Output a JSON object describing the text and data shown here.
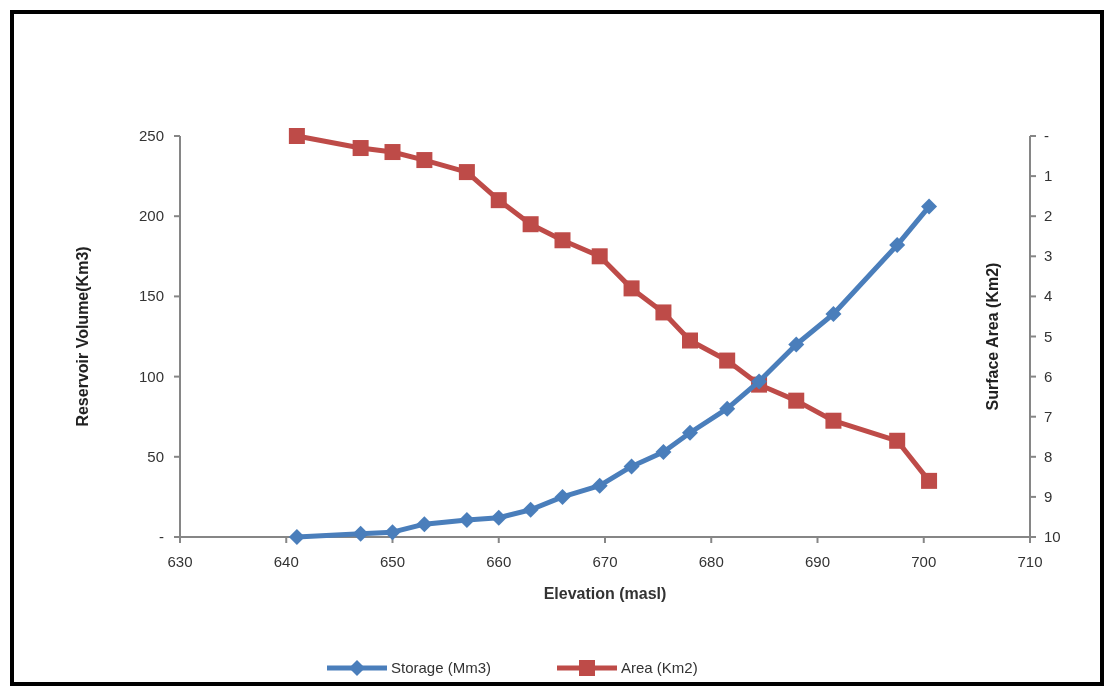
{
  "chart_data": {
    "type": "line",
    "xlabel": "Elevation (masl)",
    "ylabel": "Reservoir  Volume(Km3)",
    "y2label": "Surface Area (Km2)",
    "x": [
      641,
      647,
      650,
      653,
      657,
      660,
      663,
      666,
      669.5,
      672.5,
      675.5,
      678,
      681.5,
      684.5,
      688,
      691.5,
      697.5,
      700.5
    ],
    "series": [
      {
        "name": "Storage (Mm3)",
        "color": "#4a7ebb",
        "marker": "diamond",
        "values": [
          0,
          2,
          3,
          8,
          10.6,
          12,
          17,
          25,
          32,
          44,
          53,
          65,
          80,
          97,
          120,
          139,
          182,
          206
        ]
      },
      {
        "name": "Area (Km2)",
        "color": "#be4b48",
        "marker": "square",
        "axis": "y2",
        "values": [
          0,
          0.3,
          0.4,
          0.6,
          0.9,
          1.6,
          2.2,
          2.6,
          3.0,
          3.8,
          4.4,
          5.1,
          5.6,
          6.2,
          6.6,
          7.1,
          7.6,
          8.6
        ]
      }
    ],
    "xlim": [
      630,
      710
    ],
    "xticks": [
      630,
      640,
      650,
      660,
      670,
      680,
      690,
      700,
      710
    ],
    "ylim": [
      0,
      250
    ],
    "yticks": [
      {
        "value": 0,
        "label": "-"
      },
      50,
      100,
      150,
      200,
      250
    ],
    "y2lim": [
      10,
      0
    ],
    "y2ticks": [
      {
        "value": 0,
        "label": "-"
      },
      1,
      2,
      3,
      4,
      5,
      6,
      7,
      8,
      9,
      10
    ],
    "grid": false,
    "legend": "bottom",
    "line_style": "solid"
  }
}
